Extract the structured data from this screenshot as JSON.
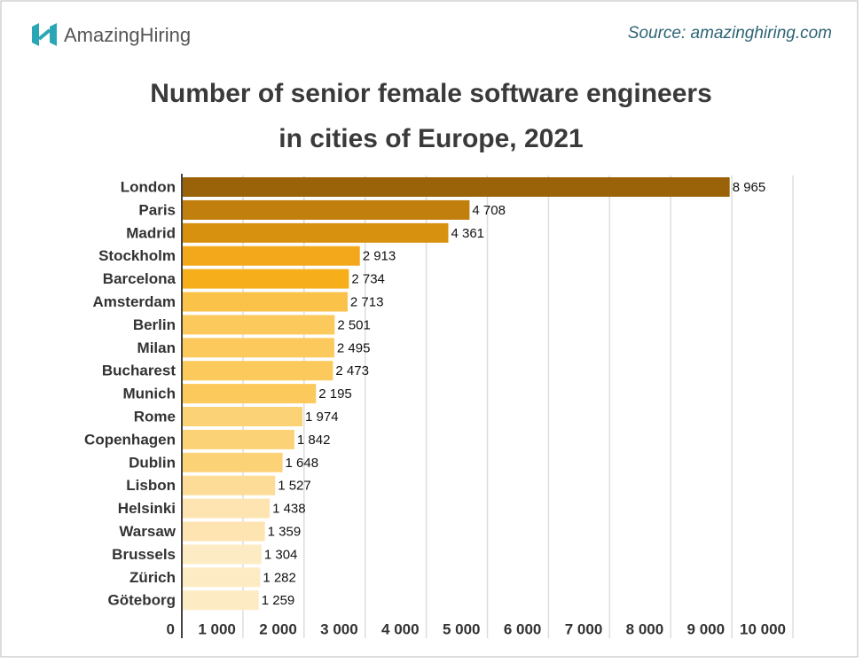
{
  "header": {
    "logo": "AmazingHiring",
    "source": "Source: amazinghiring.com"
  },
  "chart_data": {
    "type": "hbar",
    "title": [
      "Number of senior female software engineers",
      "in cities of Europe, 2021"
    ],
    "categories": [
      "London",
      "Paris",
      "Madrid",
      "Stockholm",
      "Barcelona",
      "Amsterdam",
      "Berlin",
      "Milan",
      "Bucharest",
      "Munich",
      "Rome",
      "Copenhagen",
      "Dublin",
      "Lisbon",
      "Helsinki",
      "Warsaw",
      "Brussels",
      "Zürich",
      "Göteborg"
    ],
    "values": [
      8965,
      4708,
      4361,
      2913,
      2734,
      2713,
      2501,
      2495,
      2473,
      2195,
      1974,
      1842,
      1648,
      1527,
      1438,
      1359,
      1304,
      1282,
      1259
    ],
    "value_labels": [
      "8 965",
      "4 708",
      "4 361",
      "2 913",
      "2 734",
      "2 713",
      "2 501",
      "2 495",
      "2 473",
      "2 195",
      "1 974",
      "1 842",
      "1 648",
      "1 527",
      "1 438",
      "1 359",
      "1 304",
      "1 282",
      "1 259"
    ],
    "colors": [
      "#9b6309",
      "#c17f0d",
      "#d8900f",
      "#f2a81a",
      "#f6ae1a",
      "#fbc24a",
      "#fcc95c",
      "#fcc95c",
      "#fcc95c",
      "#fcc95c",
      "#fcd277",
      "#fcd277",
      "#fcd277",
      "#fcdc97",
      "#fde4b0",
      "#fde4b0",
      "#fdebc4",
      "#fdebc4",
      "#fdebc4"
    ],
    "xlim": [
      0,
      10000
    ],
    "xticks": [
      0,
      {
        "value": 1000,
        "label": "1 000"
      },
      {
        "value": 2000,
        "label": "2 000"
      },
      {
        "value": 3000,
        "label": "3 000"
      },
      {
        "value": 4000,
        "label": "4 000"
      },
      {
        "value": 5000,
        "label": "5 000"
      },
      {
        "value": 6000,
        "label": "6 000"
      },
      {
        "value": 7000,
        "label": "7 000"
      },
      {
        "value": 8000,
        "label": "8 000"
      },
      {
        "value": 9000,
        "label": "9 000"
      },
      {
        "value": 10000,
        "label": "10 000"
      }
    ],
    "grid": true
  }
}
